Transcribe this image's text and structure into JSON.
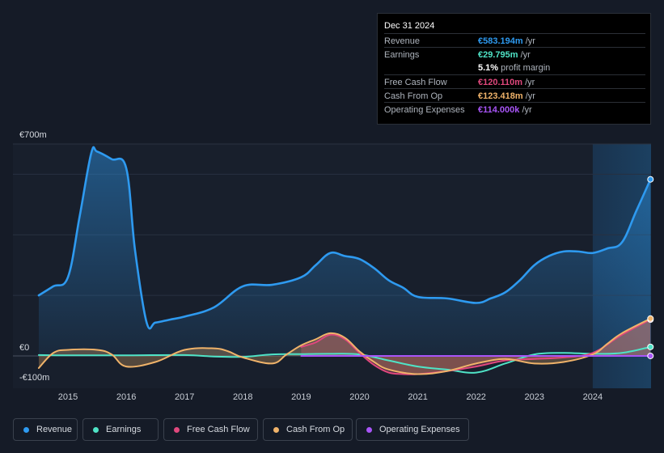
{
  "tooltip": {
    "date": "Dec 31 2024",
    "rows": [
      {
        "label": "Revenue",
        "value": "€583.194m",
        "unit": "/yr",
        "color": "#2e9af0"
      },
      {
        "label": "Earnings",
        "value": "€29.795m",
        "unit": "/yr",
        "color": "#4fe3c6"
      },
      {
        "label": "",
        "value": "5.1%",
        "unit": "profit margin",
        "color": "#ffffff"
      },
      {
        "label": "Free Cash Flow",
        "value": "€120.110m",
        "unit": "/yr",
        "color": "#e0487d"
      },
      {
        "label": "Cash From Op",
        "value": "€123.418m",
        "unit": "/yr",
        "color": "#f0b36a"
      },
      {
        "label": "Operating Expenses",
        "value": "€114.000k",
        "unit": "/yr",
        "color": "#a855f7"
      }
    ]
  },
  "legend": [
    {
      "label": "Revenue",
      "color": "#2e9af0"
    },
    {
      "label": "Earnings",
      "color": "#4fe3c6"
    },
    {
      "label": "Free Cash Flow",
      "color": "#e0487d"
    },
    {
      "label": "Cash From Op",
      "color": "#f0b36a"
    },
    {
      "label": "Operating Expenses",
      "color": "#a855f7"
    }
  ],
  "chart_data": {
    "type": "line",
    "title": "",
    "y_unit": "€ millions",
    "ylim": [
      -100,
      700
    ],
    "y_tick_labels": [
      {
        "value": 700,
        "label": "€700m"
      },
      {
        "value": 0,
        "label": "€0"
      },
      {
        "value": -100,
        "label": "-€100m"
      }
    ],
    "xlim": [
      2014.5,
      2025.0
    ],
    "x_ticks": [
      2015,
      2016,
      2017,
      2018,
      2019,
      2020,
      2021,
      2022,
      2023,
      2024
    ],
    "x_tick_labels": [
      "2015",
      "2016",
      "2017",
      "2018",
      "2019",
      "2020",
      "2021",
      "2022",
      "2023",
      "2024"
    ],
    "forecast_from": 2024.0,
    "series": [
      {
        "name": "Revenue",
        "color": "#2e9af0",
        "fill": true,
        "points": [
          [
            2014.5,
            200
          ],
          [
            2014.75,
            230
          ],
          [
            2015.0,
            260
          ],
          [
            2015.2,
            460
          ],
          [
            2015.4,
            670
          ],
          [
            2015.5,
            675
          ],
          [
            2015.75,
            650
          ],
          [
            2016.0,
            620
          ],
          [
            2016.15,
            350
          ],
          [
            2016.35,
            110
          ],
          [
            2016.5,
            110
          ],
          [
            2016.75,
            120
          ],
          [
            2017.0,
            130
          ],
          [
            2017.5,
            160
          ],
          [
            2018.0,
            230
          ],
          [
            2018.5,
            235
          ],
          [
            2019.0,
            260
          ],
          [
            2019.25,
            300
          ],
          [
            2019.5,
            340
          ],
          [
            2019.75,
            330
          ],
          [
            2020.0,
            320
          ],
          [
            2020.25,
            290
          ],
          [
            2020.5,
            250
          ],
          [
            2020.75,
            225
          ],
          [
            2021.0,
            195
          ],
          [
            2021.5,
            190
          ],
          [
            2022.0,
            175
          ],
          [
            2022.25,
            190
          ],
          [
            2022.5,
            210
          ],
          [
            2022.75,
            250
          ],
          [
            2023.0,
            300
          ],
          [
            2023.25,
            330
          ],
          [
            2023.5,
            345
          ],
          [
            2023.75,
            345
          ],
          [
            2024.0,
            340
          ],
          [
            2024.25,
            355
          ],
          [
            2024.5,
            375
          ],
          [
            2024.75,
            480
          ],
          [
            2024.99,
            583.194
          ]
        ]
      },
      {
        "name": "Earnings",
        "color": "#4fe3c6",
        "fill": false,
        "points": [
          [
            2014.5,
            3
          ],
          [
            2015.0,
            2
          ],
          [
            2016.0,
            2
          ],
          [
            2017.0,
            3
          ],
          [
            2017.5,
            -2
          ],
          [
            2018.0,
            -3
          ],
          [
            2018.5,
            5
          ],
          [
            2019.0,
            6
          ],
          [
            2019.5,
            7
          ],
          [
            2020.0,
            5
          ],
          [
            2020.5,
            -15
          ],
          [
            2021.0,
            -35
          ],
          [
            2021.5,
            -45
          ],
          [
            2022.0,
            -55
          ],
          [
            2022.5,
            -25
          ],
          [
            2023.0,
            5
          ],
          [
            2023.5,
            10
          ],
          [
            2024.0,
            7
          ],
          [
            2024.5,
            10
          ],
          [
            2024.99,
            29.795
          ]
        ]
      },
      {
        "name": "Free Cash Flow",
        "color": "#e0487d",
        "fill": true,
        "points": [
          [
            2019.0,
            30
          ],
          [
            2019.25,
            45
          ],
          [
            2019.5,
            70
          ],
          [
            2019.75,
            55
          ],
          [
            2020.0,
            10
          ],
          [
            2020.25,
            -30
          ],
          [
            2020.5,
            -55
          ],
          [
            2020.75,
            -60
          ],
          [
            2021.0,
            -60
          ],
          [
            2021.5,
            -50
          ],
          [
            2022.0,
            -35
          ],
          [
            2022.5,
            -15
          ],
          [
            2023.0,
            -10
          ],
          [
            2023.5,
            -5
          ],
          [
            2024.0,
            10
          ],
          [
            2024.5,
            70
          ],
          [
            2024.99,
            120.11
          ]
        ]
      },
      {
        "name": "Cash From Op",
        "color": "#f0b36a",
        "fill": true,
        "points": [
          [
            2014.5,
            -40
          ],
          [
            2014.75,
            10
          ],
          [
            2015.0,
            20
          ],
          [
            2015.5,
            20
          ],
          [
            2015.75,
            5
          ],
          [
            2016.0,
            -35
          ],
          [
            2016.5,
            -20
          ],
          [
            2017.0,
            20
          ],
          [
            2017.5,
            25
          ],
          [
            2017.75,
            15
          ],
          [
            2018.0,
            -5
          ],
          [
            2018.5,
            -25
          ],
          [
            2018.75,
            5
          ],
          [
            2019.0,
            35
          ],
          [
            2019.25,
            55
          ],
          [
            2019.5,
            75
          ],
          [
            2019.75,
            60
          ],
          [
            2020.0,
            15
          ],
          [
            2020.25,
            -20
          ],
          [
            2020.5,
            -45
          ],
          [
            2021.0,
            -60
          ],
          [
            2021.5,
            -50
          ],
          [
            2022.0,
            -25
          ],
          [
            2022.5,
            -10
          ],
          [
            2023.0,
            -25
          ],
          [
            2023.5,
            -20
          ],
          [
            2024.0,
            5
          ],
          [
            2024.25,
            40
          ],
          [
            2024.5,
            75
          ],
          [
            2024.99,
            123.418
          ]
        ]
      },
      {
        "name": "Operating Expenses",
        "color": "#a855f7",
        "fill": false,
        "points": [
          [
            2019.0,
            0
          ],
          [
            2020.0,
            0
          ],
          [
            2021.0,
            0
          ],
          [
            2022.0,
            0
          ],
          [
            2023.0,
            0
          ],
          [
            2024.0,
            0
          ],
          [
            2024.99,
            0.114
          ]
        ]
      }
    ]
  }
}
